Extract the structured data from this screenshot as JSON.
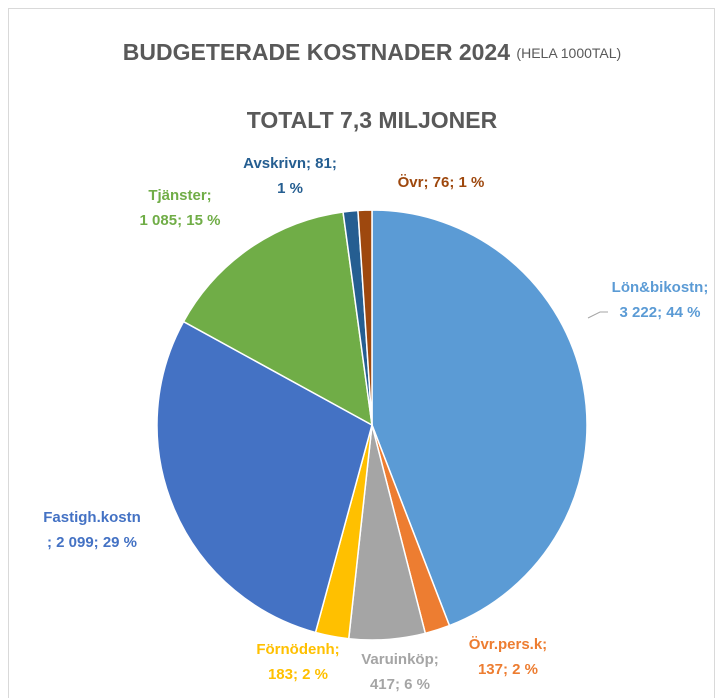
{
  "chart_data": {
    "type": "pie",
    "title": "BUDGETERADE KOSTNADER 2024",
    "title_note": "(HELA 1000TAL)",
    "subtitle": "TOTALT 7,3 MILJONER",
    "categories": [
      "Lön&bikostn",
      "Övr.pers.k",
      "Varuinköp",
      "Förnödenh",
      "Fastigh.kostn",
      "Tjänster",
      "Avskrivn",
      "Övr"
    ],
    "values": [
      3222,
      137,
      417,
      183,
      2099,
      1085,
      81,
      76
    ],
    "value_labels": [
      [
        "Lön&bikostn;",
        "3 222; 44 %"
      ],
      [
        "Övr.pers.k;",
        "137; 2 %"
      ],
      [
        "Varuinköp;",
        "417; 6 %"
      ],
      [
        "Förnödenh;",
        "183; 2 %"
      ],
      [
        "Fastigh.kostn",
        "; 2 099; 29 %"
      ],
      [
        "Tjänster;",
        "1 085; 15 %"
      ],
      [
        "Avskrivn; 81;",
        "1 %"
      ],
      [
        "Övr; 76; 1 %"
      ]
    ],
    "colors": [
      "#5b9bd5",
      "#ed7d31",
      "#a5a5a5",
      "#ffc000",
      "#4472c4",
      "#70ad47",
      "#255e91",
      "#9e480e"
    ]
  }
}
